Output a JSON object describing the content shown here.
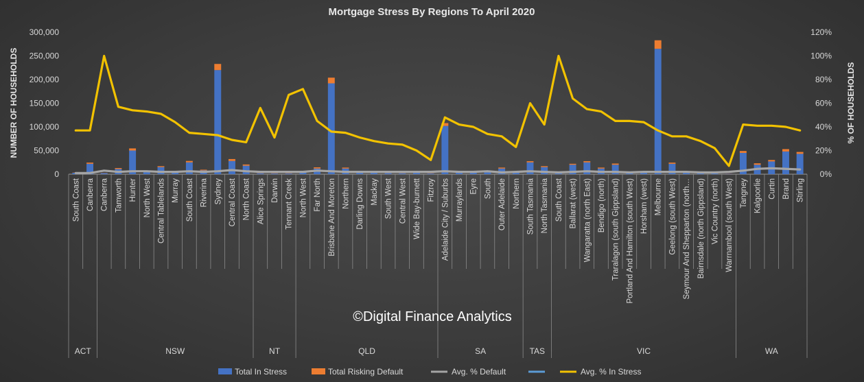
{
  "chart_data": {
    "type": "bar",
    "title": "Mortgage Stress By Regions To April 2020",
    "ylabel": "NUMBER OF HOUSEHOLDS",
    "y2label": "% OF HOUSEHOLDS",
    "ylim": [
      0,
      300000
    ],
    "y2lim": [
      0,
      1.2
    ],
    "yticks": [
      "0",
      "50,000",
      "100,000",
      "150,000",
      "200,000",
      "250,000",
      "300,000"
    ],
    "y2ticks": [
      "0%",
      "20%",
      "40%",
      "60%",
      "80%",
      "100%",
      "120%"
    ],
    "stacked": true,
    "watermark": "©Digital Finance Analytics",
    "groups": [
      {
        "name": "ACT",
        "categories": [
          "South Coast",
          "Canberra"
        ]
      },
      {
        "name": "NSW",
        "categories": [
          "Canberra",
          "Tamworth",
          "Hunter",
          "North West",
          "Central Tablelands",
          "Murray",
          "South Coast",
          "Riverina",
          "Sydney",
          "Central Coast",
          "North Coast"
        ]
      },
      {
        "name": "NT",
        "categories": [
          "Alice Springs",
          "Darwin",
          "Tennant Creek"
        ]
      },
      {
        "name": "QLD",
        "categories": [
          "North West",
          "Far North",
          "Brisbane And Moreton",
          "Northern",
          "Darling Downs",
          "Mackay",
          "South West",
          "Central West",
          "Wide Bay-burnett",
          "Fitzroy"
        ]
      },
      {
        "name": "SA",
        "categories": [
          "Adelaide City / Suburbs",
          "Murraylands",
          "Eyre",
          "South",
          "Outer Adelaide",
          "Northern"
        ]
      },
      {
        "name": "TAS",
        "categories": [
          "South Tasmania",
          "North Tasmania"
        ]
      },
      {
        "name": "VIC",
        "categories": [
          "South Coast",
          "Ballarat (west)",
          "Wangaratta (north East)",
          "Bendigo (north)",
          "Traralagon (south Gippsland)",
          "Portland And Hamilton (south West)",
          "Horsham (west)",
          "Melbourne",
          "Geelong (south West)",
          "Seymour And Shepparton (north…",
          "Bairnsdale (north Gippsland)",
          "Vic Country (north)",
          "Warrnambool (south West)"
        ]
      },
      {
        "name": "WA",
        "categories": [
          "Tangney",
          "Kalgoorlie",
          "Curtin",
          "Brand",
          "Stirling"
        ]
      }
    ],
    "series": [
      {
        "name": "Total In Stress",
        "kind": "bar",
        "axis": "left",
        "color": "#4472c4",
        "values": [
          3000,
          22000,
          2500,
          11000,
          50000,
          5000,
          15000,
          3500,
          25000,
          8000,
          220000,
          28000,
          18000,
          2000,
          1500,
          1500,
          4000,
          12000,
          192000,
          12000,
          3000,
          3500,
          2500,
          2000,
          3000,
          1500,
          102000,
          4500,
          3000,
          4000,
          12000,
          3000,
          25000,
          15000,
          3500,
          20000,
          25000,
          12000,
          20000,
          2500,
          3500,
          265000,
          22000,
          3000,
          3500,
          1500,
          1000,
          45000,
          20000,
          27000,
          48000,
          43000
        ]
      },
      {
        "name": "Total Risking Default",
        "kind": "bar",
        "axis": "left",
        "color": "#ed7d31",
        "values": [
          500,
          2500,
          500,
          2000,
          4500,
          1000,
          2000,
          500,
          3000,
          1500,
          13000,
          4000,
          2500,
          500,
          500,
          500,
          1000,
          2500,
          12000,
          2000,
          500,
          500,
          500,
          500,
          500,
          500,
          6000,
          1000,
          500,
          500,
          2000,
          500,
          2500,
          2000,
          500,
          2000,
          2500,
          2000,
          2500,
          500,
          500,
          18000,
          2500,
          500,
          500,
          500,
          500,
          4000,
          3000,
          3000,
          5000,
          4000
        ]
      },
      {
        "name": "Avg. % Default",
        "kind": "line",
        "axis": "right",
        "color": "#a5a5a5",
        "values": [
          0.01,
          0.01,
          0.03,
          0.02,
          0.025,
          0.025,
          0.02,
          0.02,
          0.025,
          0.02,
          0.025,
          0.035,
          0.025,
          0.02,
          0.02,
          0.02,
          0.02,
          0.03,
          0.025,
          0.02,
          0.02,
          0.02,
          0.02,
          0.02,
          0.02,
          0.02,
          0.025,
          0.02,
          0.02,
          0.025,
          0.015,
          0.02,
          0.025,
          0.02,
          0.015,
          0.02,
          0.025,
          0.02,
          0.02,
          0.015,
          0.02,
          0.02,
          0.02,
          0.02,
          0.015,
          0.015,
          0.02,
          0.03,
          0.045,
          0.05,
          0.045,
          0.04
        ]
      },
      {
        "name": "",
        "kind": "legend-only",
        "color": "#5b9bd5"
      },
      {
        "name": "Avg. % In Stress",
        "kind": "line",
        "axis": "right",
        "color": "#f2c200",
        "values": [
          0.37,
          0.37,
          1.0,
          0.57,
          0.54,
          0.53,
          0.51,
          0.44,
          0.35,
          0.34,
          0.33,
          0.29,
          0.27,
          0.56,
          0.31,
          0.67,
          0.72,
          0.45,
          0.36,
          0.35,
          0.31,
          0.28,
          0.26,
          0.25,
          0.2,
          0.12,
          0.48,
          0.42,
          0.4,
          0.34,
          0.32,
          0.23,
          0.6,
          0.42,
          1.0,
          0.64,
          0.55,
          0.53,
          0.45,
          0.45,
          0.44,
          0.37,
          0.32,
          0.32,
          0.28,
          0.22,
          0.07,
          0.42,
          0.41,
          0.41,
          0.4,
          0.37
        ]
      }
    ]
  }
}
